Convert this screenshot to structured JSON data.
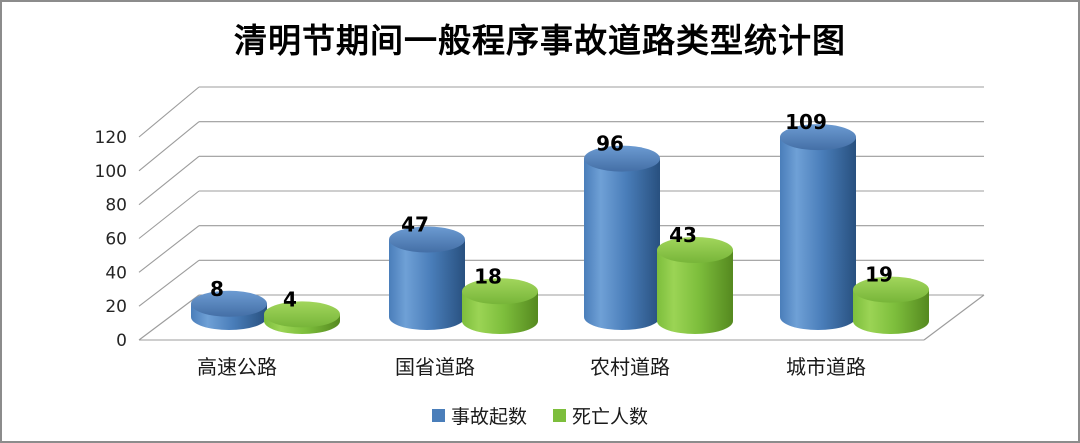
{
  "chart_data": {
    "type": "bar",
    "subtype": "3d-cylinder",
    "title": "清明节期间一般程序事故道路类型统计图",
    "categories": [
      "高速公路",
      "国省道路",
      "农村道路",
      "城市道路"
    ],
    "series": [
      {
        "name": "事故起数",
        "values": [
          8,
          47,
          96,
          109
        ],
        "color": "#4A7EBA",
        "color_light": "#6FA0D6",
        "color_dark": "#28507F",
        "top_light": "#6C9BD2",
        "top_dark": "#446FA6"
      },
      {
        "name": "死亡人数",
        "values": [
          4,
          18,
          43,
          19
        ],
        "color": "#7DBE3C",
        "color_light": "#9BD455",
        "color_dark": "#55891F",
        "top_light": "#A2D65C",
        "top_dark": "#77B539"
      }
    ],
    "xlabel": "",
    "ylabel": "",
    "y_axis": {
      "min": 0,
      "max": 120,
      "step": 20,
      "ticks": [
        0,
        20,
        40,
        60,
        80,
        100,
        120
      ]
    },
    "grid": true,
    "gridline_color": "#9c9c9c",
    "legend_position": "bottom",
    "data_labels": true
  }
}
